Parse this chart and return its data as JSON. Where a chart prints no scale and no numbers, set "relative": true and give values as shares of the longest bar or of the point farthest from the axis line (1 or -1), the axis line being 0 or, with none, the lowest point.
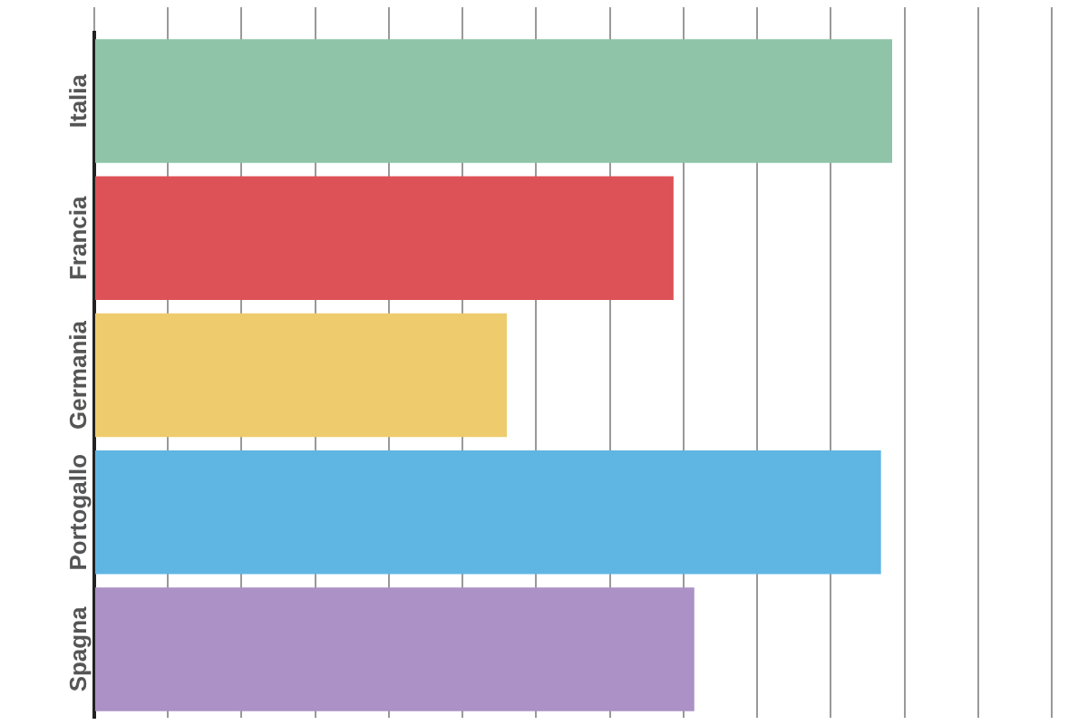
{
  "chart_data": {
    "type": "bar",
    "orientation": "horizontal",
    "relative": true,
    "grid": "x",
    "tick_labels": "y",
    "categories": [
      "Italia",
      "Francia",
      "Germania",
      "Portogallo",
      "Spagna"
    ],
    "values": [
      1,
      0.726,
      0.517,
      0.986,
      0.752
    ],
    "colors": [
      "#8fc4a8",
      "#dd5257",
      "#eecb6c",
      "#5fb6e3",
      "#ab91c5"
    ]
  }
}
